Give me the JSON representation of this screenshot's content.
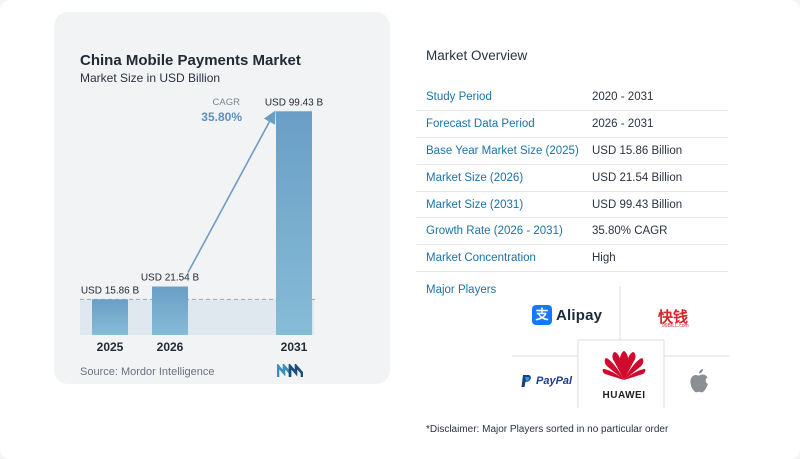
{
  "chart_data": {
    "type": "bar",
    "title": "China Mobile Payments Market",
    "subtitle": "Market Size in USD Billion",
    "categories": [
      "2025",
      "2026",
      "2031"
    ],
    "values": [
      15.86,
      21.54,
      99.43
    ],
    "data_labels": [
      "USD 15.86 B",
      "USD 21.54 B",
      "USD 99.43 B"
    ],
    "ylim": [
      0,
      100
    ],
    "grid": false,
    "annotation": {
      "label": "CAGR",
      "value": "35.80%"
    },
    "source": "Source:  Mordor Intelligence",
    "colors": {
      "bar_top": "#6a9ec6",
      "bar_bottom": "#86bcd6",
      "arrow": "#6f9cc2",
      "cagr": "#5d90bd",
      "baseline_fill": "#dfe7ef"
    }
  },
  "overview": {
    "title": "Market Overview",
    "rows": [
      {
        "key": "Study Period",
        "value": "2020 - 2031"
      },
      {
        "key": "Forecast Data Period",
        "value": "2026 - 2031"
      },
      {
        "key": "Base Year Market Size (2025)",
        "value": "USD 15.86 Billion"
      },
      {
        "key": "Market Size (2026)",
        "value": "USD 21.54 Billion"
      },
      {
        "key": "Market Size (2031)",
        "value": "USD 99.43 Billion"
      },
      {
        "key": "Growth Rate (2026 - 2031)",
        "value": "35.80% CAGR"
      },
      {
        "key": "Market Concentration",
        "value": "High"
      }
    ]
  },
  "players": {
    "title": "Major Players",
    "alipay": "Alipay",
    "alipay_mark": "支",
    "kuaiqian": "快钱",
    "kuaiqian_sub": "99BILL.com",
    "paypal": "PayPal",
    "huawei": "HUAWEI"
  },
  "disclaimer": "*Disclaimer: Major Players sorted in no particular order",
  "colors": {
    "key_text": "#1c72a8",
    "accent": "#1c72a8"
  }
}
